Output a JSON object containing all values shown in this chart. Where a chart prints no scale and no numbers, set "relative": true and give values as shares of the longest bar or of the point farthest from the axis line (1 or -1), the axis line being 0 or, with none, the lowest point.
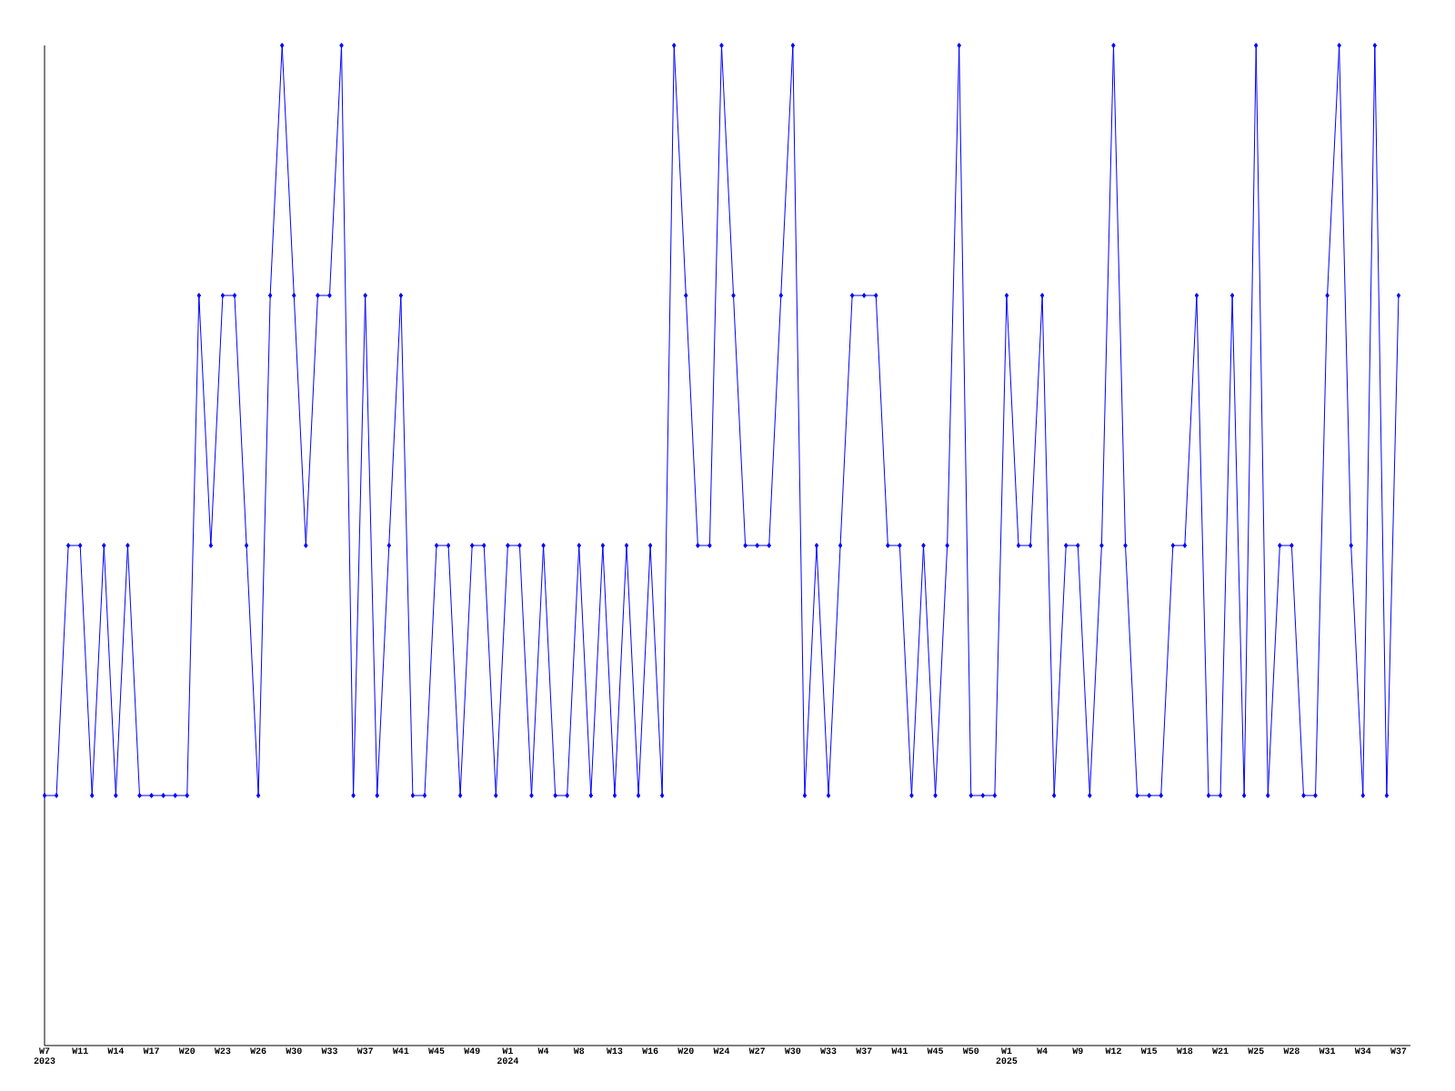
{
  "chart_data": {
    "type": "line",
    "relative": true,
    "marker": "diamond",
    "line_style": "solid",
    "categories": [
      "W7 2023",
      null,
      null,
      "W11",
      null,
      null,
      "W14",
      null,
      null,
      "W17",
      null,
      null,
      "W20",
      null,
      null,
      "W23",
      null,
      null,
      "W26",
      null,
      null,
      "W30",
      null,
      null,
      "W33",
      null,
      null,
      "W37",
      null,
      null,
      "W41",
      null,
      null,
      "W45",
      null,
      null,
      "W49",
      null,
      null,
      "W1 2024",
      null,
      null,
      "W4",
      null,
      null,
      "W8",
      null,
      null,
      "W13",
      null,
      null,
      "W16",
      null,
      null,
      "W20",
      null,
      null,
      "W24",
      null,
      null,
      "W27",
      null,
      null,
      "W30",
      null,
      null,
      "W33",
      null,
      null,
      "W37",
      null,
      null,
      "W41",
      null,
      null,
      "W45",
      null,
      null,
      "W50",
      null,
      null,
      "W1 2025",
      null,
      null,
      "W4",
      null,
      null,
      "W9",
      null,
      null,
      "W12",
      null,
      null,
      "W15",
      null,
      null,
      "W18",
      null,
      null,
      "W21",
      null,
      null,
      "W25",
      null,
      null,
      "W28",
      null,
      null,
      "W31",
      null,
      null,
      "W34",
      null,
      null,
      "W37"
    ],
    "series": [
      {
        "color": "#0000ff",
        "values": [
          0.25,
          0.25,
          0.5,
          0.5,
          0.25,
          0.5,
          0.25,
          0.5,
          0.25,
          0.25,
          0.25,
          0.25,
          0.25,
          0.75,
          0.5,
          0.75,
          0.75,
          0.5,
          0.25,
          0.75,
          1,
          0.75,
          0.5,
          0.75,
          0.75,
          1,
          0.25,
          0.75,
          0.25,
          0.5,
          0.75,
          0.25,
          0.25,
          0.5,
          0.5,
          0.25,
          0.5,
          0.5,
          0.25,
          0.5,
          0.5,
          0.25,
          0.5,
          0.25,
          0.25,
          0.5,
          0.25,
          0.5,
          0.25,
          0.5,
          0.25,
          0.5,
          0.25,
          1,
          0.75,
          0.5,
          0.5,
          1,
          0.75,
          0.5,
          0.5,
          0.5,
          0.75,
          1,
          0.25,
          0.5,
          0.25,
          0.5,
          0.75,
          0.75,
          0.75,
          0.5,
          0.5,
          0.25,
          0.5,
          0.25,
          0.5,
          1,
          0.25,
          0.25,
          0.25,
          0.75,
          0.5,
          0.5,
          0.75,
          0.25,
          0.5,
          0.5,
          0.25,
          0.5,
          1,
          0.5,
          0.25,
          0.25,
          0.25,
          0.5,
          0.5,
          0.75,
          0.25,
          0.25,
          0.75,
          0.25,
          1,
          0.25,
          0.5,
          0.5,
          0.25,
          0.25,
          0.75,
          1,
          0.5,
          0.25,
          1,
          0.25,
          0.75
        ]
      }
    ]
  }
}
